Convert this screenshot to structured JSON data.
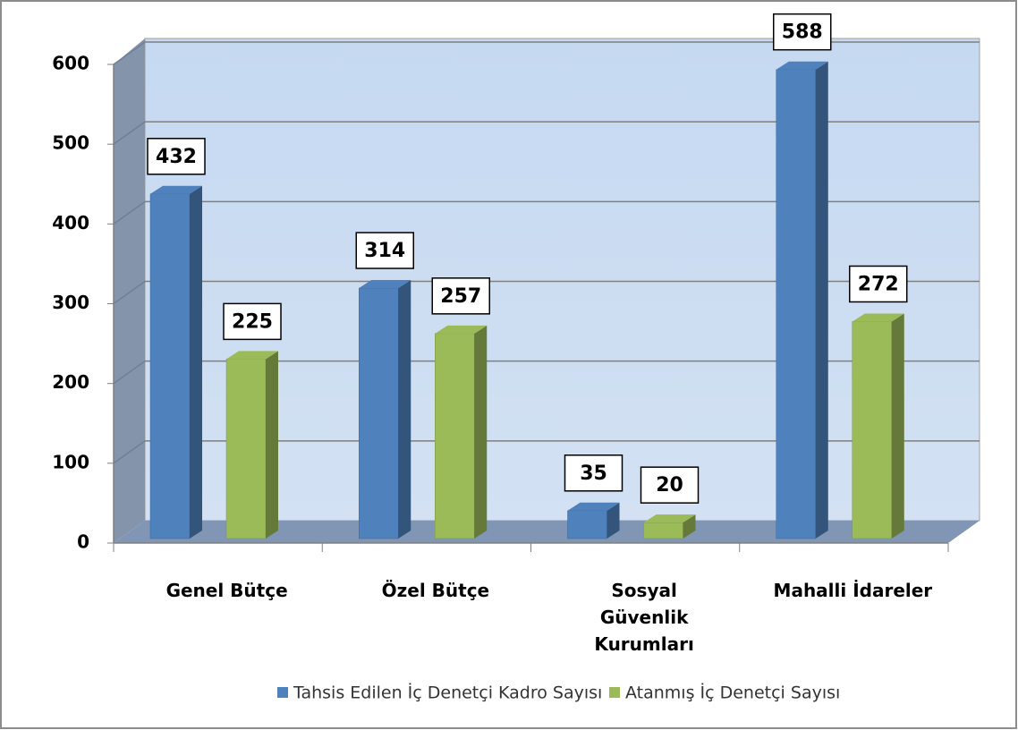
{
  "chart_data": {
    "type": "bar",
    "categories": [
      "Genel Bütçe",
      "Özel Bütçe",
      "Sosyal Güvenlik Kurumları",
      "Mahalli İdareler"
    ],
    "series": [
      {
        "name": "Tahsis Edilen İç Denetçi Kadro Sayısı",
        "color": "#4f81bd",
        "values": [
          432,
          314,
          35,
          588
        ]
      },
      {
        "name": "Atanmış İç Denetçi Sayısı",
        "color": "#9bbb59",
        "values": [
          225,
          257,
          20,
          272
        ]
      }
    ],
    "ylim": [
      0,
      600
    ],
    "yticks": [
      0,
      100,
      200,
      300,
      400,
      500,
      600
    ],
    "grid": true,
    "legend": "bottom"
  }
}
